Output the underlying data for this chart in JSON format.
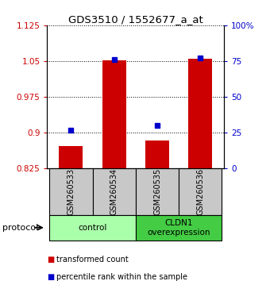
{
  "title": "GDS3510 / 1552677_a_at",
  "samples": [
    "GSM260533",
    "GSM260534",
    "GSM260535",
    "GSM260536"
  ],
  "transformed_counts": [
    0.872,
    1.052,
    0.883,
    1.055
  ],
  "percentile_ranks": [
    27,
    76,
    30,
    77
  ],
  "ylim_left": [
    0.825,
    1.125
  ],
  "ylim_right": [
    0,
    100
  ],
  "yticks_left": [
    0.825,
    0.9,
    0.975,
    1.05,
    1.125
  ],
  "ytick_labels_left": [
    "0.825",
    "0.9",
    "0.975",
    "1.05",
    "1.125"
  ],
  "yticks_right": [
    0,
    25,
    50,
    75,
    100
  ],
  "ytick_labels_right": [
    "0",
    "25",
    "50",
    "75",
    "100%"
  ],
  "bar_color": "#cc0000",
  "dot_color": "#0000cc",
  "bar_width": 0.55,
  "groups": [
    {
      "label": "control",
      "indices": [
        0,
        1
      ],
      "color": "#aaffaa"
    },
    {
      "label": "CLDN1\noverexpression",
      "indices": [
        2,
        3
      ],
      "color": "#44cc44"
    }
  ],
  "protocol_label": "protocol",
  "legend_bar_label": "transformed count",
  "legend_dot_label": "percentile rank within the sample",
  "grid_color": "#000000",
  "axis_color_left": "#cc0000",
  "axis_color_right": "#0000cc",
  "background_label": "#c8c8c8",
  "xlim": [
    -0.55,
    3.55
  ]
}
